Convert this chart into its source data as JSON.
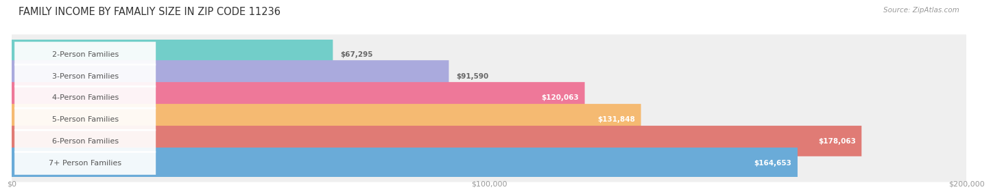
{
  "title": "FAMILY INCOME BY FAMALIY SIZE IN ZIP CODE 11236",
  "source": "Source: ZipAtlas.com",
  "categories": [
    "2-Person Families",
    "3-Person Families",
    "4-Person Families",
    "5-Person Families",
    "6-Person Families",
    "7+ Person Families"
  ],
  "values": [
    67295,
    91590,
    120063,
    131848,
    178063,
    164653
  ],
  "bar_colors": [
    "#72CEC9",
    "#AAAADD",
    "#EE7899",
    "#F5BA72",
    "#E07B75",
    "#6AABD8"
  ],
  "value_labels": [
    "$67,295",
    "$91,590",
    "$120,063",
    "$131,848",
    "$178,063",
    "$164,653"
  ],
  "value_inside": [
    false,
    false,
    true,
    true,
    true,
    true
  ],
  "xlim": [
    0,
    200000
  ],
  "xticks": [
    0,
    100000,
    200000
  ],
  "xtick_labels": [
    "$0",
    "$100,000",
    "$200,000"
  ],
  "background_color": "#FFFFFF",
  "bar_bg_color": "#EFEFEF",
  "title_fontsize": 10.5,
  "label_fontsize": 8,
  "value_fontsize": 7.5,
  "source_fontsize": 7.5
}
